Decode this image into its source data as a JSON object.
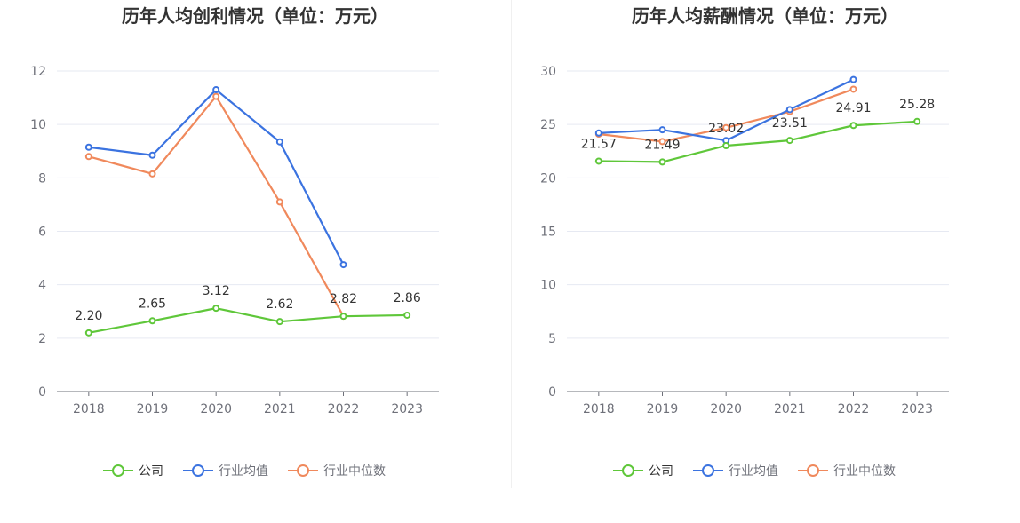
{
  "legend": {
    "company": "公司",
    "industry_avg": "行业均值",
    "industry_median": "行业中位数"
  },
  "colors": {
    "company": "#5fc73a",
    "industry_avg": "#3b73e0",
    "industry_median": "#f0895c",
    "grid": "#e6e9f2",
    "axis": "#6e7079"
  },
  "chart_data": [
    {
      "type": "line",
      "title": "历年人均创利情况（单位：万元）",
      "categories": [
        "2018",
        "2019",
        "2020",
        "2021",
        "2022",
        "2023"
      ],
      "ylim": [
        0,
        12
      ],
      "yticks": [
        "0",
        "2",
        "4",
        "6",
        "8",
        "10",
        "12"
      ],
      "series": [
        {
          "key": "company",
          "name": "公司",
          "values": [
            2.2,
            2.65,
            3.12,
            2.62,
            2.82,
            2.86
          ],
          "labels": [
            "2.20",
            "2.65",
            "3.12",
            "2.62",
            "2.82",
            "2.86"
          ]
        },
        {
          "key": "industry_avg",
          "name": "行业均值",
          "values": [
            9.15,
            8.85,
            11.3,
            9.35,
            4.75,
            null
          ]
        },
        {
          "key": "industry_median",
          "name": "行业中位数",
          "values": [
            8.8,
            8.15,
            11.05,
            7.1,
            2.82,
            null
          ]
        }
      ]
    },
    {
      "type": "line",
      "title": "历年人均薪酬情况（单位：万元）",
      "categories": [
        "2018",
        "2019",
        "2020",
        "2021",
        "2022",
        "2023"
      ],
      "ylim": [
        0,
        30
      ],
      "yticks": [
        "0",
        "5",
        "10",
        "15",
        "20",
        "25",
        "30"
      ],
      "series": [
        {
          "key": "company",
          "name": "公司",
          "values": [
            21.57,
            21.49,
            23.02,
            23.51,
            24.91,
            25.28
          ],
          "labels": [
            "21.57",
            "21.49",
            "23.02",
            "23.51",
            "24.91",
            "25.28"
          ]
        },
        {
          "key": "industry_avg",
          "name": "行业均值",
          "values": [
            24.2,
            24.5,
            23.5,
            26.4,
            29.2,
            null
          ]
        },
        {
          "key": "industry_median",
          "name": "行业中位数",
          "values": [
            24.1,
            23.4,
            24.7,
            26.2,
            28.3,
            null
          ]
        }
      ]
    }
  ]
}
